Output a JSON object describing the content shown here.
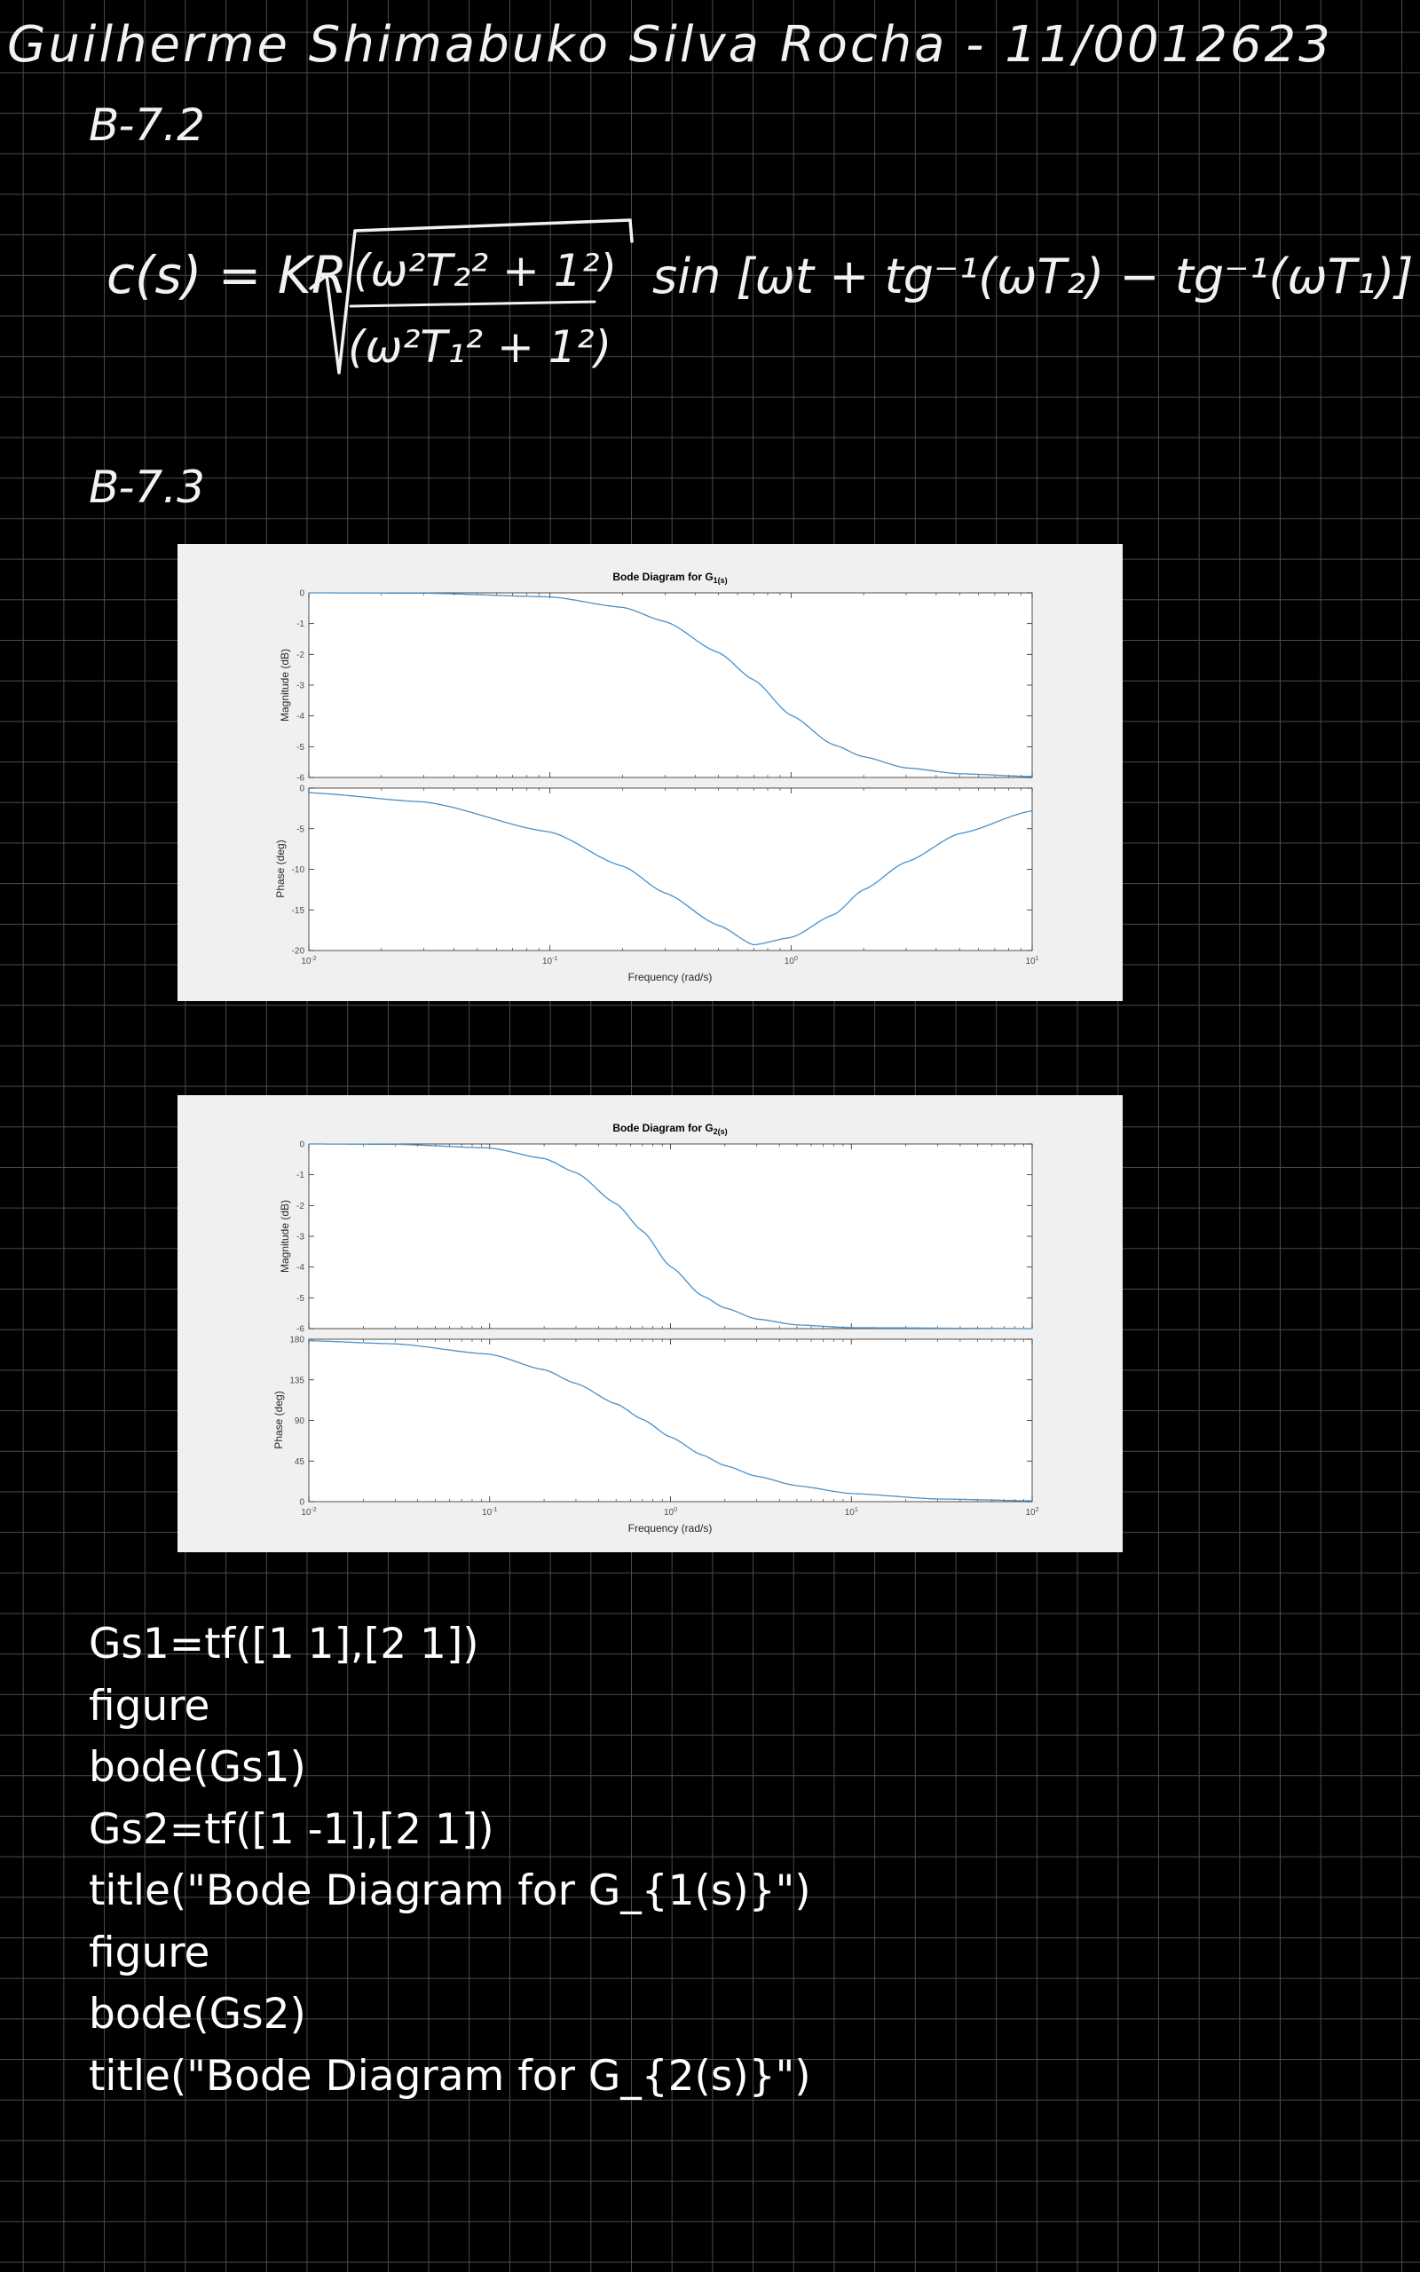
{
  "page": {
    "heading": "Guilherme Shimabuko Silva Rocha - 11/0012623",
    "section_b72": "B-7.2",
    "section_b73": "B-7.3"
  },
  "equation": {
    "lhs": "c(s) = KR",
    "numerator": "(ω²T₂² + 1²)",
    "denominator": "(ω²T₁² + 1²)",
    "rhs": "sin [ωt + tg⁻¹(ωT₂) − tg⁻¹(ωT₁)]"
  },
  "figures": [
    {
      "title_main": "Bode Diagram for G",
      "title_sub": "1(s)",
      "magnitude_ylabel": "Magnitude (dB)",
      "phase_ylabel": "Phase (deg)",
      "xlabel": "Frequency  (rad/s)"
    },
    {
      "title_main": "Bode Diagram for G",
      "title_sub": "2(s)",
      "magnitude_ylabel": "Magnitude (dB)",
      "phase_ylabel": "Phase (deg)",
      "xlabel": "Frequency  (rad/s)"
    }
  ],
  "chart_data": [
    {
      "type": "line",
      "title": "Bode Diagram for G_{1(s)}",
      "xscale": "log",
      "xlim": [
        0.01,
        10
      ],
      "xticks": [
        0.01,
        0.1,
        1,
        10
      ],
      "xtick_labels": [
        "10-2",
        "10-1",
        "100",
        "101"
      ],
      "color": "#4a90c8",
      "panels": [
        {
          "name": "magnitude",
          "ylabel": "Magnitude (dB)",
          "ylim": [
            -6,
            0
          ],
          "yticks": [
            0,
            -1,
            -2,
            -3,
            -4,
            -5,
            -6
          ],
          "x": [
            0.01,
            0.03,
            0.1,
            0.2,
            0.3,
            0.5,
            0.7,
            1,
            1.5,
            2,
            3,
            5,
            10
          ],
          "y": [
            0,
            -0.01,
            -0.13,
            -0.47,
            -0.93,
            -1.94,
            -2.83,
            -3.98,
            -4.94,
            -5.33,
            -5.69,
            -5.88,
            -5.97
          ]
        },
        {
          "name": "phase",
          "ylabel": "Phase (deg)",
          "ylim": [
            -20,
            0
          ],
          "yticks": [
            0,
            -5,
            -10,
            -15,
            -20
          ],
          "x": [
            0.01,
            0.03,
            0.1,
            0.2,
            0.3,
            0.5,
            0.7,
            1,
            1.5,
            2,
            3,
            5,
            10
          ],
          "y": [
            -0.57,
            -1.7,
            -5.4,
            -9.6,
            -12.9,
            -16.9,
            -19.3,
            -18.4,
            -15.6,
            -12.5,
            -9.1,
            -5.6,
            -2.8
          ]
        }
      ]
    },
    {
      "type": "line",
      "title": "Bode Diagram for G_{2(s)}",
      "xscale": "log",
      "xlim": [
        0.01,
        100
      ],
      "xticks": [
        0.01,
        0.1,
        1,
        10,
        100
      ],
      "xtick_labels": [
        "10-2",
        "10-1",
        "100",
        "101",
        "102"
      ],
      "color": "#4a90c8",
      "panels": [
        {
          "name": "magnitude",
          "ylabel": "Magnitude (dB)",
          "ylim": [
            -6,
            0
          ],
          "yticks": [
            0,
            -1,
            -2,
            -3,
            -4,
            -5,
            -6
          ],
          "x": [
            0.01,
            0.03,
            0.1,
            0.2,
            0.3,
            0.5,
            0.7,
            1,
            1.5,
            2,
            3,
            5,
            10,
            100
          ],
          "y": [
            0,
            -0.01,
            -0.13,
            -0.47,
            -0.93,
            -1.94,
            -2.83,
            -3.98,
            -4.94,
            -5.33,
            -5.69,
            -5.88,
            -5.97,
            -6
          ]
        },
        {
          "name": "phase",
          "ylabel": "Phase (deg)",
          "ylim": [
            0,
            180
          ],
          "yticks": [
            180,
            135,
            90,
            45,
            0
          ],
          "x": [
            0.01,
            0.03,
            0.1,
            0.2,
            0.3,
            0.5,
            0.7,
            1,
            1.5,
            2,
            3,
            5,
            10,
            30,
            100
          ],
          "y": [
            178.3,
            174.9,
            163.4,
            146.2,
            131.0,
            108.4,
            91.2,
            71.6,
            51.6,
            40.0,
            28.1,
            17.6,
            9.0,
            3.0,
            0.9
          ]
        }
      ]
    }
  ],
  "code": {
    "lines": [
      "Gs1=tf([1 1],[2 1])",
      "figure",
      "bode(Gs1)",
      "Gs2=tf([1 -1],[2 1])",
      "title(\"Bode Diagram for G_{1(s)}\")",
      "figure",
      "bode(Gs2)",
      "title(\"Bode Diagram for G_{2(s)}\")"
    ]
  }
}
